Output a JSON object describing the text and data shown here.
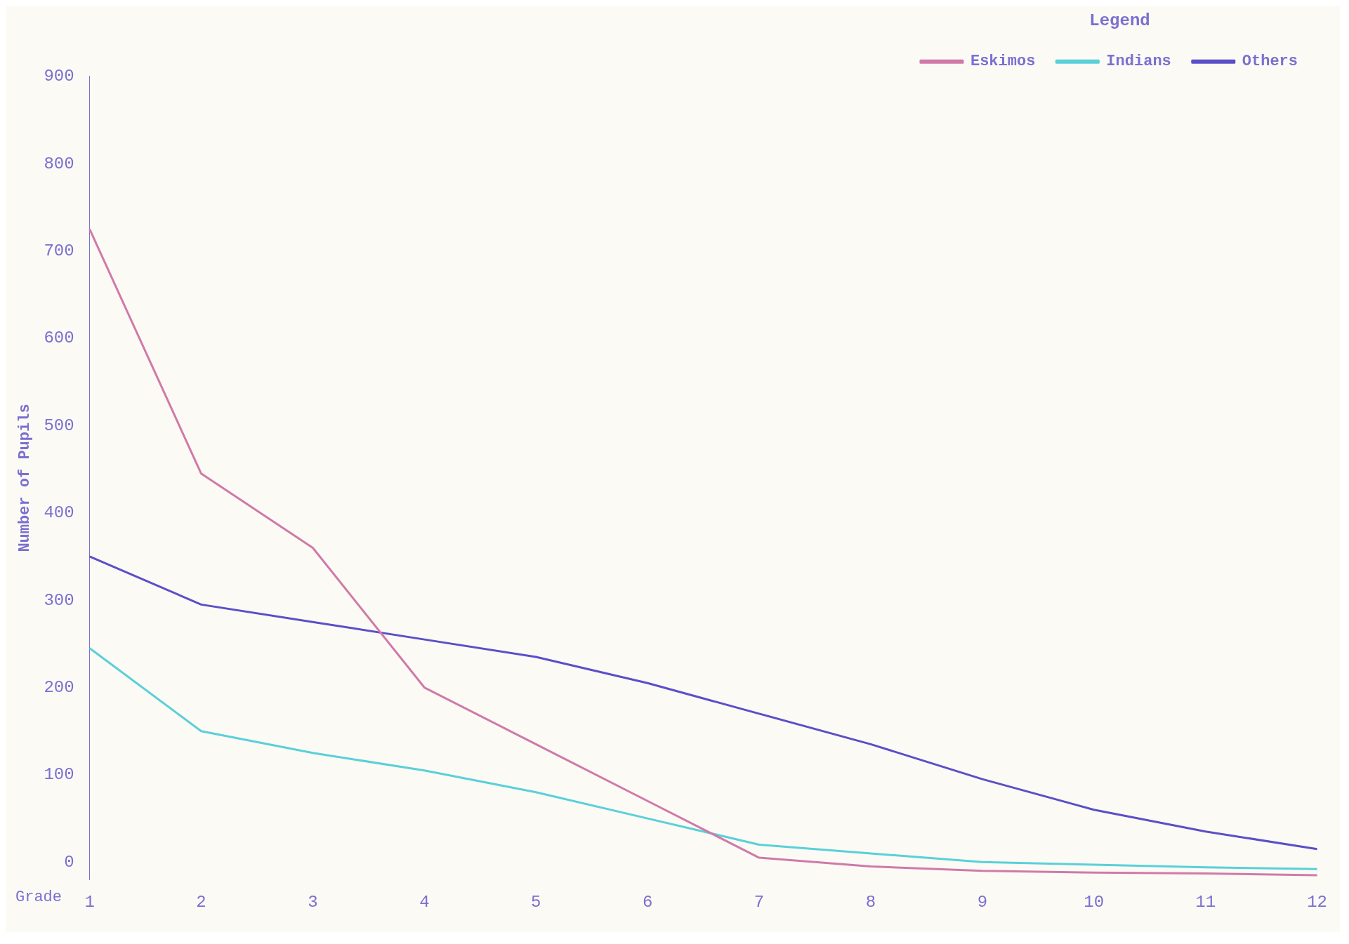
{
  "chart_data": {
    "type": "line",
    "xlabel": "Grade",
    "ylabel": "Number of Pupils",
    "legend_title": "Legend",
    "legend": "top right",
    "grid": false,
    "marker": "none",
    "line_style": "solid",
    "categories": [
      "1",
      "2",
      "3",
      "4",
      "5",
      "6",
      "7",
      "8",
      "9",
      "10",
      "11",
      "12"
    ],
    "ylim": [
      -20,
      900
    ],
    "yticks": [
      0,
      100,
      200,
      300,
      400,
      500,
      600,
      700,
      800,
      900
    ],
    "series": [
      {
        "name": "Eskimos",
        "color": "#d07aa8",
        "values": [
          725,
          445,
          360,
          200,
          135,
          70,
          5,
          -5,
          -10,
          -12,
          -13,
          -15
        ]
      },
      {
        "name": "Indians",
        "color": "#5ad0d8",
        "values": [
          245,
          150,
          125,
          105,
          80,
          50,
          20,
          10,
          0,
          -3,
          -6,
          -8
        ]
      },
      {
        "name": "Others",
        "color": "#5a4fc8",
        "values": [
          350,
          295,
          275,
          255,
          235,
          205,
          170,
          135,
          95,
          60,
          35,
          15
        ]
      }
    ]
  }
}
